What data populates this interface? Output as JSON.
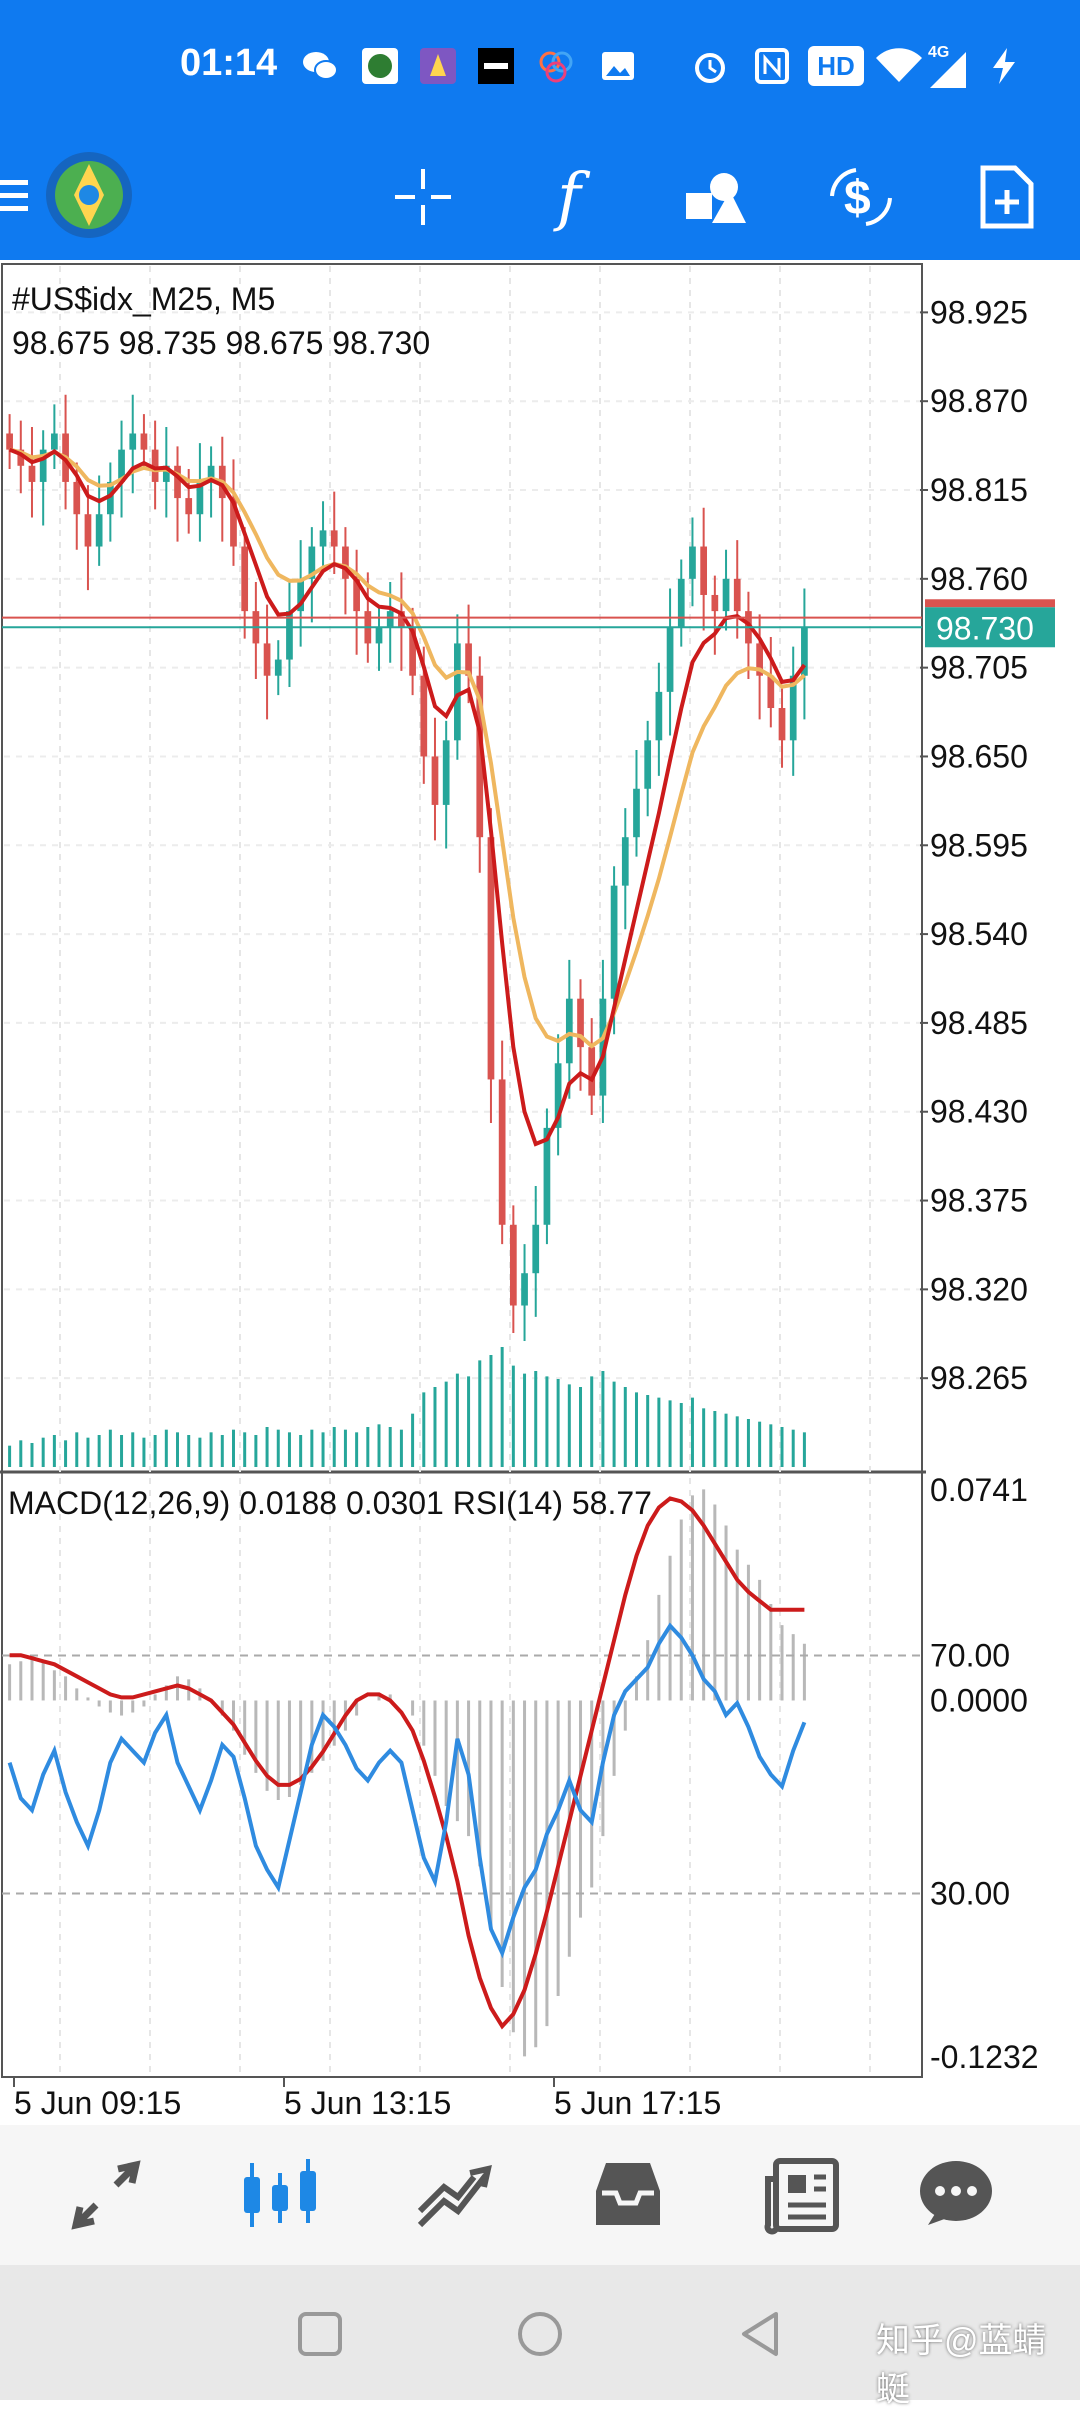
{
  "status_bar": {
    "time": "01:14",
    "icons": [
      "wechat-icon",
      "app-icon-1",
      "app-icon-2",
      "app-icon-3",
      "app-icon-4",
      "gallery-icon",
      "alarm-icon",
      "nfc-icon",
      "hd-icon",
      "wifi-icon",
      "signal-4g-icon",
      "charging-icon"
    ],
    "hd_label": "HD",
    "network_label": "4G"
  },
  "toolbar": {
    "icons": [
      "menu-icon",
      "metatrader-logo-icon",
      "crosshair-icon",
      "indicators-f-icon",
      "objects-icon",
      "trade-dollar-icon",
      "new-order-icon"
    ],
    "indicator_glyph": "f"
  },
  "chart_data": [
    {
      "type": "candlestick",
      "symbol_label": "#US$idx_M25, M5",
      "ohlc_label": "98.675 98.735 98.675 98.730",
      "ylim": [
        98.21,
        98.95
      ],
      "y_ticks": [
        "98.925",
        "98.870",
        "98.815",
        "98.760",
        "98.705",
        "98.650",
        "98.595",
        "98.540",
        "98.485",
        "98.430",
        "98.375",
        "98.320",
        "98.265"
      ],
      "current_price_label": "98.730",
      "bid": 98.73,
      "ask": 98.736,
      "colors": {
        "up": "#26a69a",
        "down": "#d9534f",
        "ma_fast": "#cc1b1b",
        "ma_slow": "#efb75f",
        "price_tag": "#26a69a",
        "ask_line": "#d9534f"
      },
      "x_ticks": [
        "5 Jun 09:15",
        "5 Jun 13:15",
        "5 Jun 17:15"
      ],
      "close_trajectory": [
        98.84,
        98.83,
        98.82,
        98.84,
        98.85,
        98.82,
        98.8,
        98.78,
        98.8,
        98.82,
        98.84,
        98.85,
        98.84,
        98.82,
        98.83,
        98.81,
        98.8,
        98.82,
        98.83,
        98.81,
        98.78,
        98.74,
        98.72,
        98.7,
        98.71,
        98.74,
        98.76,
        98.78,
        98.79,
        98.78,
        98.76,
        98.74,
        98.72,
        98.73,
        98.74,
        98.73,
        98.7,
        98.65,
        98.62,
        98.66,
        98.72,
        98.7,
        98.6,
        98.45,
        98.36,
        98.31,
        98.33,
        98.36,
        98.42,
        98.46,
        98.5,
        98.47,
        98.44,
        98.5,
        98.57,
        98.6,
        98.63,
        98.66,
        98.69,
        98.73,
        98.76,
        98.78,
        98.75,
        98.74,
        98.76,
        98.74,
        98.72,
        98.7,
        98.68,
        98.66,
        98.7,
        98.73
      ],
      "volume_trajectory": [
        8,
        10,
        9,
        11,
        12,
        10,
        13,
        11,
        12,
        14,
        12,
        13,
        11,
        12,
        14,
        13,
        12,
        11,
        13,
        12,
        14,
        13,
        12,
        15,
        14,
        13,
        12,
        14,
        13,
        15,
        14,
        13,
        15,
        16,
        15,
        14,
        20,
        28,
        30,
        32,
        35,
        34,
        40,
        42,
        45,
        38,
        35,
        36,
        34,
        33,
        31,
        30,
        34,
        36,
        32,
        30,
        28,
        27,
        26,
        25,
        24,
        26,
        22,
        21,
        20,
        19,
        18,
        17,
        16,
        15,
        14,
        13
      ]
    },
    {
      "type": "line",
      "indicator_label": "MACD(12,26,9) 0.0188 0.0301 RSI(14) 58.77",
      "macd_ylim": [
        -0.1232,
        0.0741
      ],
      "y_ticks_macd": [
        "0.0741",
        "0.0000",
        "-0.1232"
      ],
      "rsi_levels": [
        "70.00",
        "30.00"
      ],
      "colors": {
        "histogram": "#b8b8b8",
        "signal": "#cc1b1b",
        "rsi": "#2f8be0",
        "level": "#aaaaaa"
      },
      "series": [
        {
          "values": [
            0.012,
            0.013,
            0.014,
            0.013,
            0.01,
            0.008,
            0.004,
            0.001,
            -0.002,
            -0.004,
            -0.005,
            -0.004,
            -0.002,
            0.002,
            0.005,
            0.008,
            0.007,
            0.004,
            0.0,
            -0.005,
            -0.01,
            -0.018,
            -0.024,
            -0.03,
            -0.033,
            -0.032,
            -0.028,
            -0.024,
            -0.02,
            -0.015,
            -0.01,
            -0.005,
            0.0,
            0.002,
            0.002,
            0.0,
            -0.005,
            -0.015,
            -0.025,
            -0.035,
            -0.04,
            -0.045,
            -0.055,
            -0.075,
            -0.095,
            -0.11,
            -0.118,
            -0.115,
            -0.108,
            -0.098,
            -0.085,
            -0.072,
            -0.062,
            -0.045,
            -0.025,
            -0.01,
            0.008,
            0.02,
            0.035,
            0.048,
            0.06,
            0.068,
            0.07,
            0.065,
            0.058,
            0.05,
            0.045,
            0.04,
            0.032,
            0.025,
            0.022,
            0.0188
          ]
        },
        {
          "values": [
            0.015,
            0.015,
            0.014,
            0.013,
            0.012,
            0.01,
            0.008,
            0.006,
            0.004,
            0.002,
            0.001,
            0.001,
            0.002,
            0.003,
            0.004,
            0.005,
            0.004,
            0.002,
            0.0,
            -0.004,
            -0.008,
            -0.014,
            -0.02,
            -0.025,
            -0.028,
            -0.028,
            -0.026,
            -0.022,
            -0.017,
            -0.011,
            -0.005,
            0.0,
            0.002,
            0.002,
            0.0,
            -0.004,
            -0.01,
            -0.02,
            -0.032,
            -0.045,
            -0.06,
            -0.078,
            -0.092,
            -0.102,
            -0.108,
            -0.104,
            -0.096,
            -0.084,
            -0.07,
            -0.055,
            -0.04,
            -0.025,
            -0.01,
            0.005,
            0.02,
            0.035,
            0.048,
            0.058,
            0.064,
            0.067,
            0.066,
            0.063,
            0.058,
            0.052,
            0.046,
            0.04,
            0.036,
            0.033,
            0.0301,
            0.0301,
            0.0301,
            0.0301
          ]
        },
        {
          "values": [
            52,
            46,
            44,
            50,
            54,
            47,
            42,
            38,
            44,
            52,
            56,
            54,
            52,
            57,
            60,
            52,
            48,
            44,
            49,
            55,
            53,
            46,
            38,
            34,
            31,
            39,
            47,
            55,
            60,
            58,
            55,
            51,
            49,
            52,
            54,
            52,
            44,
            36,
            32,
            42,
            56,
            50,
            36,
            24,
            20,
            26,
            31,
            34,
            40,
            44,
            49,
            44,
            42,
            52,
            60,
            64,
            66,
            68,
            72,
            75,
            73,
            70,
            66,
            64,
            60,
            62,
            58,
            53,
            50,
            48,
            54,
            58.77
          ]
        }
      ]
    }
  ],
  "bottom_nav": {
    "items": [
      "quotes-icon",
      "chart-icon",
      "trade-icon",
      "history-icon",
      "news-icon",
      "chat-icon"
    ]
  },
  "system_nav": {
    "items": [
      "recent-apps-icon",
      "home-icon",
      "back-icon"
    ]
  },
  "watermark": "知乎@蓝蜻蜓"
}
